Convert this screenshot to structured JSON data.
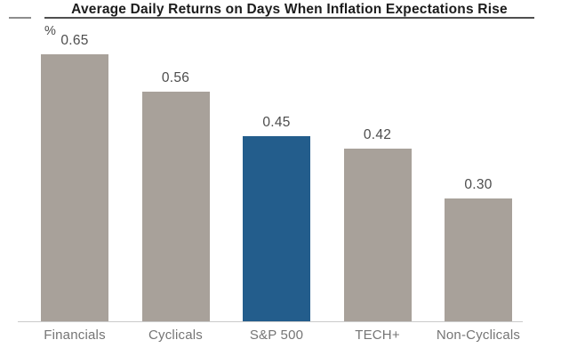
{
  "chart_data": {
    "type": "bar",
    "title": "Average Daily Returns on Days When Inflation Expectations Rise",
    "ylabel": "%",
    "xlabel": "",
    "categories": [
      "Financials",
      "Cyclicals",
      "S&P 500",
      "TECH+",
      "Non-Cyclicals"
    ],
    "values": [
      0.65,
      0.56,
      0.45,
      0.42,
      0.3
    ],
    "value_labels": [
      "0.65",
      "0.56",
      "0.45",
      "0.42",
      "0.30"
    ],
    "ylim": [
      0,
      0.72
    ],
    "grid": false,
    "legend": false,
    "highlighted_category": "S&P 500",
    "highlight_index": 2,
    "colors": {
      "bar_default": "#a8a19a",
      "bar_highlight": "#235d8c",
      "title_text": "#1c1c1c",
      "value_label": "#4d4d4d",
      "category_label": "#757575",
      "title_underline": "#4f4f4f",
      "baseline": "#cbcbcb"
    }
  }
}
